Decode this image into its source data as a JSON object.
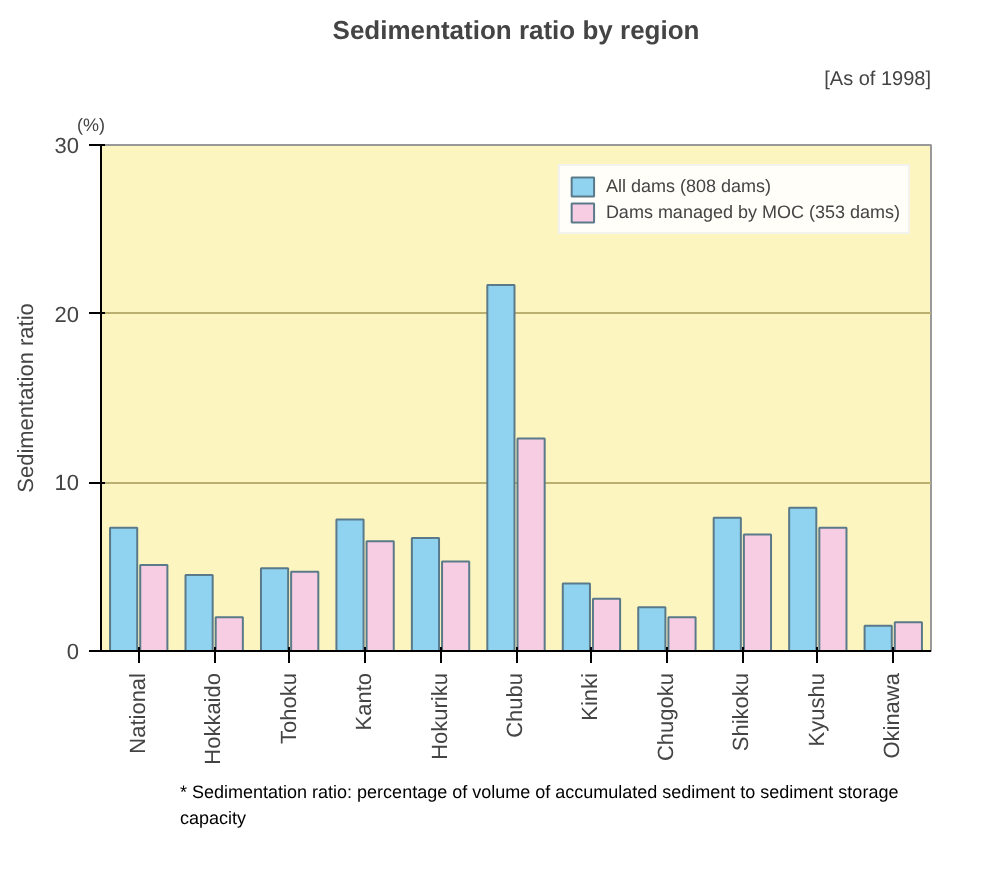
{
  "chart_data": {
    "type": "bar",
    "title": "Sedimentation ratio by region",
    "subtitle": "[As of 1998]",
    "ylabel": "Sedimentation ratio",
    "annotations": [
      "(%)",
      "* Sedimentation ratio: percentage of volume of accumulated sediment to sediment storage capacity"
    ],
    "categories": [
      "National",
      "Hokkaido",
      "Tohoku",
      "Kanto",
      "Hokuriku",
      "Chubu",
      "Kinki",
      "Chugoku",
      "Shikoku",
      "Kyushu",
      "Okinawa"
    ],
    "series": [
      {
        "name": "All dams (808 dams)",
        "color": "#8fd3f0",
        "values": [
          7.3,
          4.5,
          4.9,
          7.8,
          6.7,
          21.7,
          4.0,
          2.6,
          7.9,
          8.5,
          1.5
        ]
      },
      {
        "name": "Dams managed by MOC (353 dams)",
        "color": "#f7cde3",
        "values": [
          5.1,
          2.0,
          4.7,
          6.5,
          5.3,
          12.6,
          3.1,
          2.0,
          6.9,
          7.3,
          1.7
        ]
      }
    ],
    "ylim": [
      0,
      30
    ],
    "yticks": [
      0,
      10,
      20,
      30
    ],
    "grid": "y",
    "legend": "top right"
  }
}
